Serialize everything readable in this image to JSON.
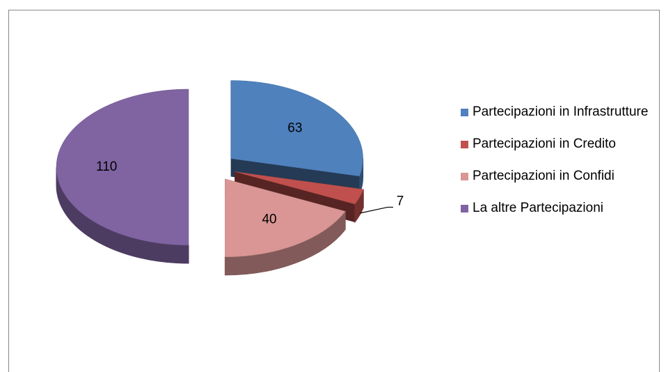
{
  "chart_data": {
    "type": "pie",
    "categories": [
      "Partecipazioni in Infrastrutture",
      "Partecipazioni in Credito",
      "Partecipazioni in Confidi",
      "La altre Partecipazioni"
    ],
    "values": [
      63,
      7,
      40,
      110
    ],
    "colors": [
      "#4f81bd",
      "#c0504d",
      "#d99694",
      "#8064a2"
    ],
    "legend": "right"
  }
}
